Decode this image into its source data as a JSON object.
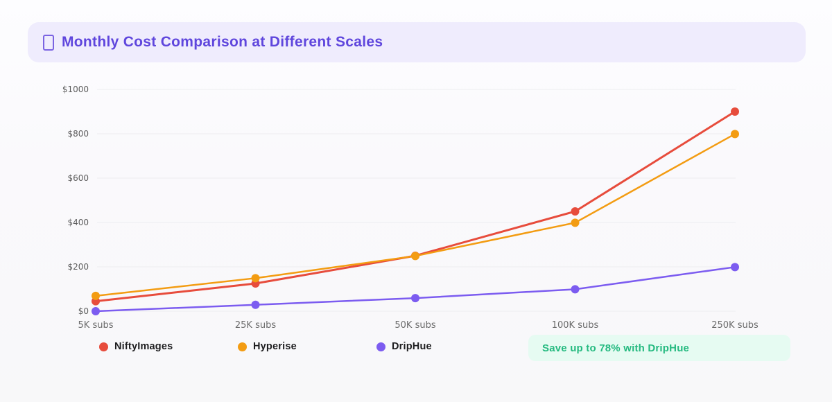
{
  "header": {
    "title": "Monthly Cost Comparison at Different Scales"
  },
  "chart_data": {
    "type": "line",
    "title": "Monthly Cost Comparison at Different Scales",
    "categories": [
      "5K subs",
      "25K subs",
      "50K subs",
      "100K subs",
      "250K subs"
    ],
    "series": [
      {
        "name": "NiftyImages",
        "color": "#e74c3c",
        "line_width": 3,
        "values": [
          45,
          125,
          250,
          450,
          900
        ]
      },
      {
        "name": "Hyperise",
        "color": "#f39c12",
        "line_width": 2.5,
        "values": [
          69,
          149,
          249,
          399,
          799
        ]
      },
      {
        "name": "DripHue",
        "color": "#7c5cf0",
        "line_width": 2.5,
        "values": [
          0,
          29,
          59,
          99,
          199
        ]
      }
    ],
    "y_ticks": [
      "$0",
      "$200",
      "$400",
      "$600",
      "$800",
      "$1000"
    ],
    "ylim": [
      0,
      1000
    ],
    "xlabel": "",
    "ylabel": "",
    "grid": true,
    "gridline_color": "#ededf0",
    "legend_position": "bottom"
  },
  "badge": {
    "text": "Save up to 78% with DripHue",
    "color": "#25ba80",
    "background": "#e6fbf2"
  }
}
